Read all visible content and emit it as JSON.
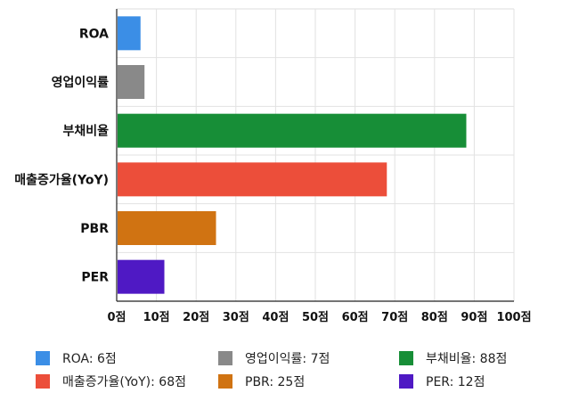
{
  "chart_data": {
    "type": "bar",
    "orientation": "horizontal",
    "categories": [
      "ROA",
      "영업이익률",
      "부채비율",
      "매출증가율(YoY)",
      "PBR",
      "PER"
    ],
    "values": [
      6,
      7,
      88,
      68,
      25,
      12
    ],
    "colors": [
      "#3b8ee6",
      "#898989",
      "#178e37",
      "#ec4e3a",
      "#d07312",
      "#4f19c4"
    ],
    "xlim": [
      0,
      100
    ],
    "xticks": [
      0,
      10,
      20,
      30,
      40,
      50,
      60,
      70,
      80,
      90,
      100
    ],
    "tick_suffix": "점",
    "grid": true,
    "legend_position": "bottom",
    "legend": [
      {
        "label": "ROA: 6점",
        "color": "#3b8ee6"
      },
      {
        "label": "영업이익률: 7점",
        "color": "#898989"
      },
      {
        "label": "부채비율: 88점",
        "color": "#178e37"
      },
      {
        "label": "매출증가율(YoY): 68점",
        "color": "#ec4e3a"
      },
      {
        "label": "PBR: 25점",
        "color": "#d07312"
      },
      {
        "label": "PER: 12점",
        "color": "#4f19c4"
      }
    ]
  }
}
